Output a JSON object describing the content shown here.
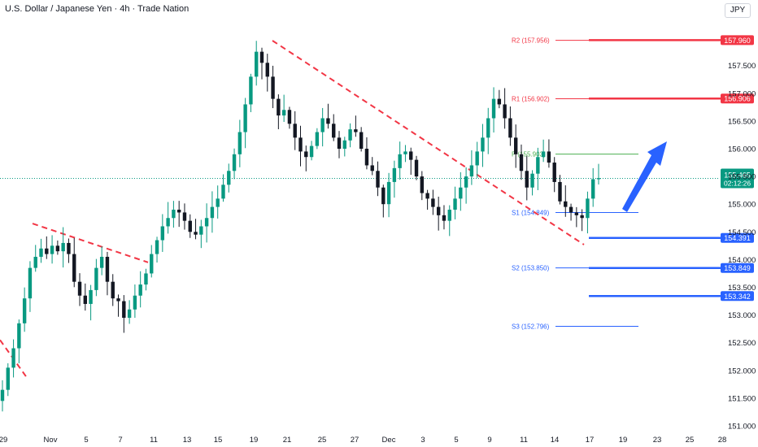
{
  "header": {
    "title": "U.S. Dollar / Japanese Yen · 4h · Trade Nation",
    "currency": "JPY"
  },
  "chart_data": {
    "type": "candlestick",
    "title": "U.S. Dollar / Japanese Yen · 4h · Trade Nation",
    "ylim": [
      151.0,
      158.55
    ],
    "y_ticks": [
      "151.000",
      "151.500",
      "152.000",
      "152.500",
      "153.000",
      "153.500",
      "154.000",
      "154.500",
      "155.000",
      "155.500",
      "156.000",
      "156.500",
      "157.000",
      "157.500"
    ],
    "x_ticks": [
      "29",
      "Nov",
      "5",
      "7",
      "11",
      "13",
      "15",
      "19",
      "21",
      "25",
      "27",
      "Dec",
      "3",
      "5",
      "9",
      "11",
      "14",
      "17",
      "19",
      "23",
      "25",
      "28"
    ],
    "price_axis_side": "right",
    "grid": false,
    "last_price": {
      "value": 155.465,
      "label": "155.465",
      "countdown": "02:12:26",
      "color": "#089981"
    },
    "levels": [
      {
        "name": "R2",
        "label": "R2 (157.956)",
        "value": 157.956,
        "color": "#f23645",
        "kind": "pivot"
      },
      {
        "name": "R1",
        "label": "R1 (156.902)",
        "value": 156.902,
        "color": "#f23645",
        "kind": "pivot"
      },
      {
        "name": "P",
        "label": "P (155.903)",
        "value": 155.903,
        "color": "#4caf50",
        "kind": "pivot"
      },
      {
        "name": "S1",
        "label": "S1 (154.849)",
        "value": 154.849,
        "color": "#2962ff",
        "kind": "pivot"
      },
      {
        "name": "S2",
        "label": "S2 (153.850)",
        "value": 153.85,
        "color": "#2962ff",
        "kind": "pivot"
      },
      {
        "name": "S3",
        "label": "S3 (152.796)",
        "value": 152.796,
        "color": "#2962ff",
        "kind": "pivot"
      }
    ],
    "horizontal_lines": [
      {
        "value": 157.96,
        "label": "157.960",
        "color": "#f23645"
      },
      {
        "value": 156.906,
        "label": "156.906",
        "color": "#f23645"
      },
      {
        "value": 154.391,
        "label": "154.391",
        "color": "#2962ff"
      },
      {
        "value": 153.849,
        "label": "153.849",
        "color": "#2962ff"
      },
      {
        "value": 153.342,
        "label": "153.342",
        "color": "#2962ff"
      }
    ],
    "trendlines": [
      {
        "style": "dashed",
        "color": "#f23645",
        "from": {
          "x_tick": "29",
          "y": 152.55
        },
        "to": {
          "x_tick": "Nov",
          "y": 151.85
        }
      },
      {
        "style": "dashed",
        "color": "#f23645",
        "from": {
          "x_tick": "Nov",
          "y": 154.65
        },
        "to": {
          "x_tick": "13",
          "y": 153.95
        }
      },
      {
        "style": "dashed",
        "color": "#f23645",
        "from": {
          "x_tick": "19",
          "y": 157.95
        },
        "to": {
          "x_tick": "17",
          "y": 154.27
        }
      }
    ],
    "arrow": {
      "color": "#2962ff",
      "direction": "up"
    },
    "series": [
      {
        "name": "price_path",
        "values": [
          151.65,
          152.05,
          152.4,
          152.85,
          153.3,
          153.85,
          154.05,
          154.2,
          154.1,
          154.25,
          154.15,
          154.3,
          154.1,
          153.6,
          153.35,
          153.2,
          153.45,
          153.85,
          154.05,
          153.6,
          153.3,
          153.25,
          152.95,
          153.1,
          153.35,
          153.55,
          153.75,
          154.1,
          154.35,
          154.6,
          154.75,
          154.9,
          154.85,
          154.7,
          154.5,
          154.45,
          154.6,
          154.75,
          154.95,
          155.1,
          155.35,
          155.6,
          155.9,
          156.3,
          156.8,
          157.3,
          157.75,
          157.55,
          157.3,
          156.9,
          156.6,
          156.7,
          156.45,
          156.2,
          155.95,
          155.85,
          156.05,
          156.3,
          156.55,
          156.45,
          156.2,
          156.0,
          156.15,
          156.35,
          156.3,
          156.0,
          155.7,
          155.6,
          155.3,
          155.0,
          155.4,
          155.65,
          155.9,
          155.95,
          155.8,
          155.5,
          155.2,
          155.1,
          154.95,
          154.8,
          154.7,
          154.9,
          155.1,
          155.3,
          155.5,
          155.7,
          155.95,
          156.2,
          156.55,
          156.9,
          156.8,
          156.55,
          156.2,
          155.9,
          155.6,
          155.3,
          155.55,
          155.85,
          155.95,
          155.75,
          155.4,
          155.05,
          154.95,
          154.85,
          154.8,
          154.75,
          155.1,
          155.45,
          155.47
        ]
      }
    ]
  }
}
